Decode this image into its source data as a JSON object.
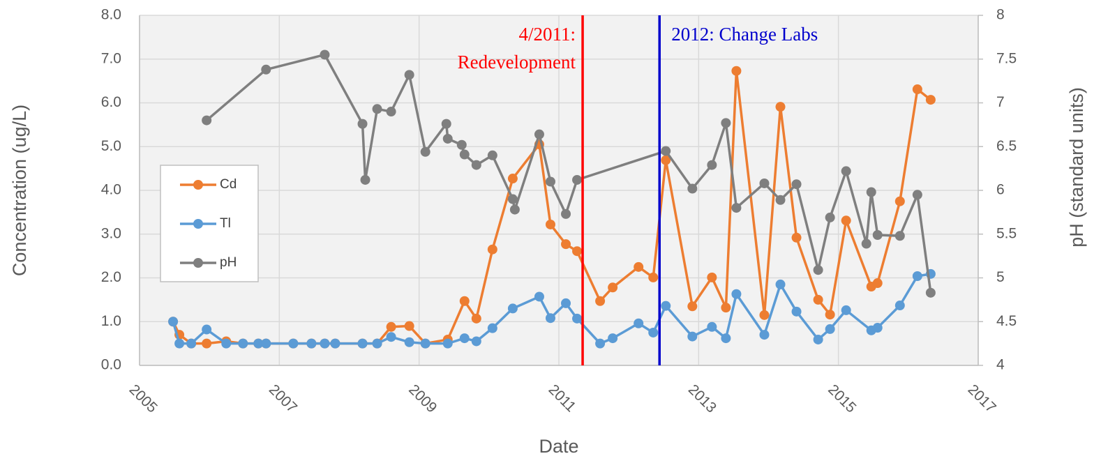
{
  "chart_data": {
    "type": "line",
    "xlabel": "Date",
    "ylabel": "Concentration (ug/L)",
    "y2label": "pH (standard units)",
    "xlim": [
      2005,
      2017
    ],
    "xticks": [
      2005,
      2007,
      2009,
      2011,
      2013,
      2015,
      2017
    ],
    "ylim": [
      0,
      8
    ],
    "yticks": [
      {
        "value": 0,
        "label": "0.0"
      },
      {
        "value": 1,
        "label": "1.0"
      },
      {
        "value": 2,
        "label": "2.0"
      },
      {
        "value": 3,
        "label": "3.0"
      },
      {
        "value": 4,
        "label": "4.0"
      },
      {
        "value": 5,
        "label": "5.0"
      },
      {
        "value": 6,
        "label": "6.0"
      },
      {
        "value": 7,
        "label": "7.0"
      },
      {
        "value": 8,
        "label": "8.0"
      }
    ],
    "y2lim": [
      4,
      8
    ],
    "y2ticks": [
      4,
      4.5,
      5,
      5.5,
      6,
      6.5,
      7,
      7.5,
      8
    ],
    "grid": true,
    "legend": "center-left",
    "annotations": [
      {
        "x": 2011.34,
        "lines": [
          "4/2011:",
          "Redevelopment"
        ],
        "color": "#ff0000",
        "side": "left"
      },
      {
        "x": 2012.44,
        "lines": [
          "2012: Change Labs"
        ],
        "color": "#0000cc",
        "side": "right"
      }
    ],
    "series": [
      {
        "name": "Cd",
        "color": "#ed7d31",
        "x": [
          2005.48,
          2005.57,
          2005.74,
          2005.96,
          2006.24,
          2006.48,
          2006.7,
          2006.81,
          2007.2,
          2007.46,
          2007.65,
          2007.8,
          2008.19,
          2008.4,
          2008.6,
          2008.86,
          2009.09,
          2009.41,
          2009.65,
          2009.82,
          2010.05,
          2010.34,
          2010.72,
          2010.88,
          2011.1,
          2011.26,
          2011.59,
          2011.77,
          2012.14,
          2012.35,
          2012.53,
          2012.91,
          2013.19,
          2013.39,
          2013.54,
          2013.94,
          2014.17,
          2014.4,
          2014.71,
          2014.88,
          2015.11,
          2015.47,
          2015.56,
          2015.88,
          2016.13,
          2016.32
        ],
        "values": [
          1.0,
          0.7,
          0.5,
          0.5,
          0.55,
          0.5,
          0.5,
          0.5,
          0.5,
          0.5,
          0.5,
          0.5,
          0.5,
          0.5,
          0.88,
          0.9,
          0.5,
          0.59,
          1.47,
          1.07,
          2.65,
          4.27,
          5.05,
          3.22,
          2.77,
          2.61,
          1.47,
          1.78,
          2.25,
          2.01,
          4.69,
          1.35,
          2.01,
          1.32,
          6.73,
          1.15,
          5.91,
          2.92,
          1.5,
          1.16,
          3.31,
          1.8,
          1.88,
          3.75,
          6.31,
          6.07
        ]
      },
      {
        "name": "Tl",
        "color": "#5b9bd5",
        "x": [
          2005.48,
          2005.57,
          2005.74,
          2005.96,
          2006.24,
          2006.48,
          2006.7,
          2006.81,
          2007.2,
          2007.46,
          2007.65,
          2007.8,
          2008.19,
          2008.4,
          2008.6,
          2008.86,
          2009.09,
          2009.41,
          2009.65,
          2009.82,
          2010.05,
          2010.34,
          2010.72,
          2010.88,
          2011.1,
          2011.26,
          2011.59,
          2011.77,
          2012.14,
          2012.35,
          2012.53,
          2012.91,
          2013.19,
          2013.39,
          2013.54,
          2013.94,
          2014.17,
          2014.4,
          2014.71,
          2014.88,
          2015.11,
          2015.47,
          2015.56,
          2015.88,
          2016.13,
          2016.32
        ],
        "values": [
          1.0,
          0.5,
          0.5,
          0.82,
          0.5,
          0.5,
          0.5,
          0.5,
          0.5,
          0.5,
          0.5,
          0.5,
          0.5,
          0.5,
          0.65,
          0.53,
          0.5,
          0.5,
          0.62,
          0.55,
          0.85,
          1.3,
          1.57,
          1.08,
          1.42,
          1.07,
          0.5,
          0.62,
          0.96,
          0.75,
          1.36,
          0.66,
          0.88,
          0.62,
          1.63,
          0.7,
          1.85,
          1.23,
          0.59,
          0.83,
          1.26,
          0.8,
          0.86,
          1.37,
          2.04,
          2.09
        ]
      },
      {
        "name": "pH",
        "color": "#7f7f7f",
        "axis": "y2",
        "x": [
          2005.96,
          2006.81,
          2007.65,
          2008.19,
          2008.23,
          2008.4,
          2008.6,
          2008.86,
          2009.09,
          2009.39,
          2009.41,
          2009.61,
          2009.65,
          2009.82,
          2010.05,
          2010.34,
          2010.37,
          2010.72,
          2010.88,
          2011.1,
          2011.26,
          2012.53,
          2012.91,
          2013.19,
          2013.39,
          2013.54,
          2013.94,
          2014.17,
          2014.4,
          2014.71,
          2014.88,
          2015.11,
          2015.4,
          2015.47,
          2015.56,
          2015.88,
          2016.13,
          2016.32
        ],
        "values": [
          6.8,
          7.38,
          7.55,
          6.76,
          6.12,
          6.93,
          6.9,
          7.32,
          6.44,
          6.76,
          6.59,
          6.52,
          6.41,
          6.29,
          6.4,
          5.9,
          5.78,
          6.64,
          6.1,
          5.73,
          6.12,
          6.45,
          6.02,
          6.29,
          6.77,
          5.8,
          6.08,
          5.89,
          6.07,
          5.09,
          5.69,
          6.22,
          5.39,
          5.98,
          5.49,
          5.48,
          5.95,
          4.83
        ]
      }
    ]
  }
}
